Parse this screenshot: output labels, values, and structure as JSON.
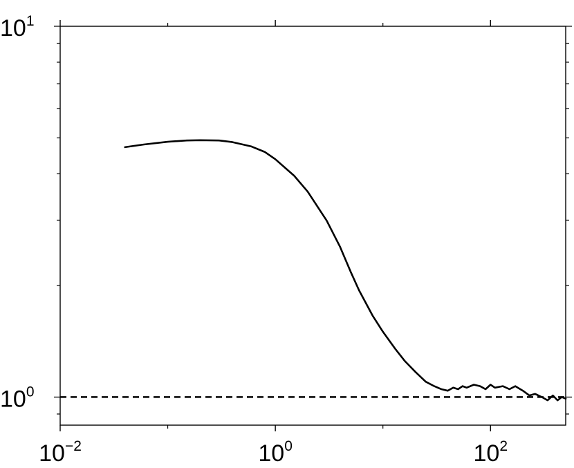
{
  "chart_data": {
    "type": "line",
    "title": "",
    "xlabel": "",
    "ylabel": "",
    "x_scale": "log",
    "y_scale": "log",
    "xlim": [
      0.01,
      500
    ],
    "ylim": [
      0.84,
      10
    ],
    "grid": false,
    "x_ticks": [
      {
        "value": 0.01,
        "base": "10",
        "exp": "−2"
      },
      {
        "value": 1,
        "base": "10",
        "exp": "0"
      },
      {
        "value": 100,
        "base": "10",
        "exp": "2"
      }
    ],
    "y_ticks": [
      {
        "value": 1,
        "base": "10",
        "exp": "0"
      },
      {
        "value": 10,
        "base": "10",
        "exp": "1"
      }
    ],
    "reference_line": {
      "y": 1.0,
      "style": "dashed"
    },
    "series": [
      {
        "color": "#000000",
        "x": [
          0.04,
          0.06,
          0.1,
          0.15,
          0.2,
          0.3,
          0.4,
          0.6,
          0.8,
          1.0,
          1.5,
          2.0,
          3.0,
          4.0,
          5.0,
          6.0,
          8.0,
          10.0,
          13.0,
          16.0,
          20.0,
          25.0,
          30.0,
          35.0,
          40.0,
          45.0,
          50.0,
          55.0,
          60.0,
          70.0,
          80.0,
          90.0,
          100.0,
          110.0,
          130.0,
          150.0,
          170.0,
          200.0,
          230.0,
          260.0,
          300.0,
          340.0,
          380.0,
          420.0,
          460.0,
          500.0
        ],
        "y": [
          4.72,
          4.8,
          4.88,
          4.92,
          4.93,
          4.92,
          4.87,
          4.74,
          4.58,
          4.38,
          3.95,
          3.58,
          2.99,
          2.54,
          2.18,
          1.94,
          1.66,
          1.5,
          1.35,
          1.25,
          1.17,
          1.1,
          1.07,
          1.05,
          1.04,
          1.06,
          1.05,
          1.07,
          1.06,
          1.08,
          1.07,
          1.05,
          1.08,
          1.06,
          1.07,
          1.05,
          1.07,
          1.04,
          1.01,
          1.02,
          1.0,
          0.98,
          1.01,
          0.98,
          1.0,
          0.99
        ]
      }
    ]
  }
}
